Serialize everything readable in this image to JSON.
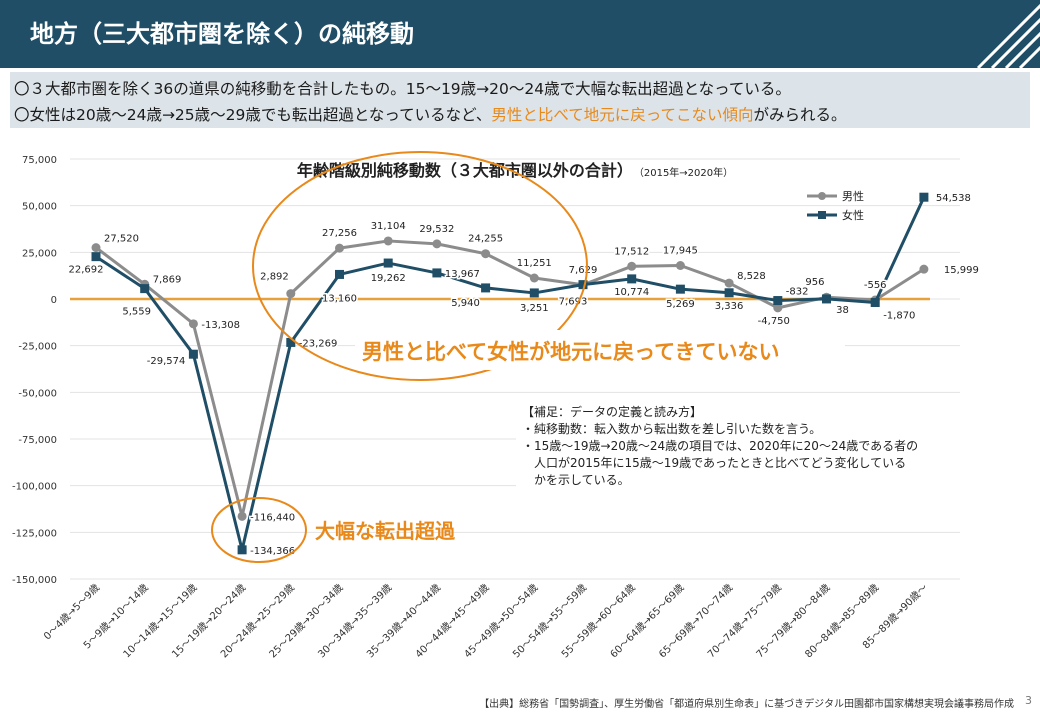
{
  "header": {
    "title": "地方（三大都市圏を除く）の純移動"
  },
  "summary": {
    "line1": "〇３大都市圏を除く36の道県の純移動を合計したもの。15～19歳→20～24歳で大幅な転出超過となっている。",
    "line2_pre": "〇女性は20歳～24歳→25歳～29歳でも転出超過となっているなど、",
    "line2_hl": "男性と比べて地元に戻ってこない傾向",
    "line2_post": "がみられる。"
  },
  "chart_data": {
    "type": "line",
    "title": "年齢階級別純移動数（３大都市圏以外の合計）",
    "subtitle": "（2015年→2020年）",
    "xlabel": "",
    "ylabel": "",
    "ylim": [
      -150000,
      75000
    ],
    "yticks": [
      75000,
      50000,
      25000,
      0,
      -25000,
      -50000,
      -75000,
      -100000,
      -125000,
      -150000
    ],
    "ytick_labels": [
      "75,000",
      "50,000",
      "25,000",
      "0",
      "-25,000",
      "-50,000",
      "-75,000",
      "-100,000",
      "-125,000",
      "-150,000"
    ],
    "grid": true,
    "legend": "top-right",
    "categories": [
      "0～4歳→5～9歳",
      "5～9歳→10～14歳",
      "10～14歳→15～19歳",
      "15～19歳→20～24歳",
      "20～24歳→25～29歳",
      "25～29歳→30～34歳",
      "30～34歳→35～39歳",
      "35～39歳→40～44歳",
      "40～44歳→45～49歳",
      "45～49歳→50～54歳",
      "50～54歳→55～59歳",
      "55～59歳→60～64歳",
      "60～64歳→65～69歳",
      "65～69歳→70～74歳",
      "70～74歳→75～79歳",
      "75～79歳→80～84歳",
      "80～84歳→85～89歳",
      "85～89歳→90歳～"
    ],
    "series": [
      {
        "name": "男性",
        "color": "#8c8c8c",
        "marker": "circle",
        "values": [
          27520,
          7869,
          -13308,
          -116440,
          2892,
          27256,
          31104,
          29532,
          24255,
          11251,
          7629,
          17512,
          17945,
          8528,
          -4750,
          956,
          -556,
          15999
        ],
        "labels": [
          "27,520",
          "7,869",
          "-13,308",
          "-116,440",
          "2,892",
          "27,256",
          "31,104",
          "29,532",
          "24,255",
          "11,251",
          "7,629",
          "17,512",
          "17,945",
          "8,528",
          "-4,750",
          "956",
          "-556",
          "15,999"
        ]
      },
      {
        "name": "女性",
        "color": "#1f4e66",
        "marker": "square",
        "values": [
          22692,
          5559,
          -29574,
          -134366,
          -23269,
          13160,
          19262,
          13967,
          5940,
          3251,
          7693,
          10774,
          5269,
          3336,
          -832,
          38,
          -1870,
          54538
        ],
        "labels": [
          "22,692",
          "5,559",
          "-29,574",
          "-134,366",
          "-23,269",
          "13,160",
          "19,262",
          "13,967",
          "5,940",
          "3,251",
          "7,693",
          "10,774",
          "5,269",
          "3,336",
          "-832",
          "38",
          "-1,870",
          "54,538"
        ]
      }
    ],
    "annotations": {
      "callout_women": "男性と比べて女性が地元に戻ってきていない",
      "callout_outflow": "大幅な転出超過",
      "note_title": "【補足：データの定義と読み方】",
      "note_lines": [
        "・純移動数：転入数から転出数を差し引いた数を言う。",
        "・15歳～19歳→20歳～24歳の項目では、2020年に20～24歳である者の",
        "　人口が2015年に15歳～19歳であったときと比べてどう変化している",
        "　かを示している。"
      ]
    }
  },
  "footer": {
    "source": "【出典】総務省「国勢調査」、厚生労働省「都道府県別生命表」に基づきデジタル田園都市国家構想実現会議事務局作成",
    "page": "3"
  },
  "colors": {
    "header_bg": "#1f4e66",
    "accent_orange": "#e8891a",
    "summary_bg": "#dde4e9"
  }
}
